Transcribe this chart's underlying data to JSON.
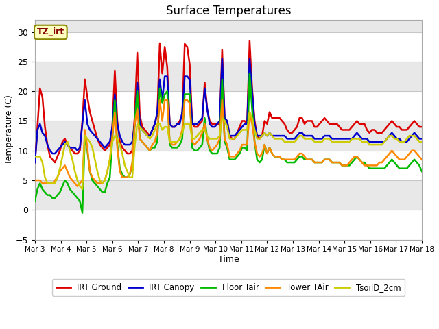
{
  "title": "Surface Temperatures",
  "xlabel": "Time",
  "ylabel": "Temperature (C)",
  "ylim": [
    -5,
    32
  ],
  "xlim": [
    0,
    15
  ],
  "annotation": "TZ_irt",
  "bg_color_light": "#e8e8e8",
  "bg_color_dark": "#d0d0d0",
  "grid_color": "#c8c8c8",
  "legend": [
    "IRT Ground",
    "IRT Canopy",
    "Floor Tair",
    "Tower TAir",
    "TsoilD_2cm"
  ],
  "colors": [
    "#dd0000",
    "#0000cc",
    "#00bb00",
    "#ff8800",
    "#cccc00"
  ],
  "xtick_labels": [
    "Mar 3",
    "Mar 4",
    "Mar 5",
    "Mar 6",
    "Mar 7",
    "Mar 8",
    "Mar 9",
    "Mar 10",
    "Mar 11",
    "Mar 12",
    "Mar 13",
    "Mar 14",
    "Mar 15",
    "Mar 16",
    "Mar 17",
    "Mar 18"
  ],
  "xtick_positions": [
    0,
    1,
    2,
    3,
    4,
    5,
    6,
    7,
    8,
    9,
    10,
    11,
    12,
    13,
    14,
    15
  ],
  "IRT_Ground": [
    8.0,
    14.0,
    20.5,
    19.0,
    14.0,
    11.0,
    9.0,
    8.5,
    8.0,
    9.0,
    10.0,
    11.5,
    12.0,
    11.0,
    10.5,
    10.0,
    9.5,
    9.5,
    10.0,
    15.0,
    22.0,
    19.0,
    16.5,
    15.0,
    13.5,
    12.0,
    11.0,
    10.5,
    10.0,
    10.5,
    11.0,
    14.0,
    23.5,
    15.0,
    11.5,
    10.5,
    10.0,
    9.5,
    9.5,
    10.0,
    16.0,
    26.5,
    16.0,
    14.0,
    13.5,
    13.0,
    12.5,
    13.5,
    14.5,
    16.0,
    28.0,
    23.0,
    27.5,
    24.0,
    14.5,
    14.0,
    14.0,
    14.5,
    15.0,
    16.0,
    28.0,
    27.5,
    24.5,
    14.5,
    14.0,
    14.0,
    14.5,
    15.0,
    21.5,
    17.0,
    15.0,
    14.5,
    14.5,
    14.5,
    14.5,
    27.0,
    15.5,
    15.0,
    12.5,
    12.0,
    12.0,
    13.0,
    14.0,
    15.0,
    15.0,
    14.5,
    28.5,
    20.5,
    15.0,
    12.5,
    12.0,
    12.5,
    15.0,
    14.5,
    16.5,
    15.5,
    15.5,
    15.5,
    15.5,
    15.0,
    14.5,
    13.5,
    13.0,
    13.0,
    13.5,
    14.0,
    15.5,
    15.5,
    14.5,
    15.0,
    15.0,
    15.0,
    14.0,
    14.0,
    14.5,
    15.0,
    15.5,
    15.0,
    14.5,
    14.5,
    14.5,
    14.5,
    14.0,
    13.5,
    13.5,
    13.5,
    13.5,
    14.0,
    14.5,
    15.0,
    14.5,
    14.5,
    14.5,
    13.5,
    13.0,
    13.5,
    13.5,
    13.0,
    13.0,
    13.0,
    13.5,
    14.0,
    14.5,
    15.0,
    14.5,
    14.0,
    14.0,
    13.5,
    13.5,
    13.5,
    14.0,
    14.5,
    15.0,
    14.5,
    14.0,
    14.0
  ],
  "IRT_Canopy": [
    8.0,
    13.5,
    14.5,
    13.0,
    12.5,
    11.0,
    10.0,
    9.5,
    9.5,
    10.0,
    10.5,
    11.0,
    11.5,
    11.0,
    10.5,
    10.5,
    10.5,
    10.0,
    10.5,
    14.5,
    18.5,
    14.5,
    13.5,
    13.0,
    12.5,
    12.0,
    11.5,
    11.0,
    10.5,
    11.0,
    11.5,
    14.0,
    19.5,
    14.5,
    12.5,
    11.5,
    11.0,
    11.0,
    11.0,
    11.5,
    14.5,
    21.5,
    14.5,
    13.5,
    13.0,
    12.5,
    12.5,
    13.5,
    14.5,
    16.5,
    22.0,
    18.5,
    22.5,
    22.5,
    14.5,
    14.0,
    14.0,
    14.5,
    14.5,
    16.5,
    22.5,
    22.5,
    22.0,
    14.5,
    14.5,
    14.5,
    15.0,
    15.5,
    20.5,
    17.0,
    14.5,
    14.0,
    14.0,
    14.5,
    15.0,
    25.5,
    15.5,
    15.0,
    12.5,
    12.5,
    12.5,
    13.0,
    13.5,
    14.0,
    14.5,
    14.5,
    25.5,
    20.0,
    14.5,
    12.5,
    12.5,
    12.5,
    13.0,
    12.5,
    13.0,
    12.5,
    12.5,
    12.5,
    12.5,
    12.5,
    12.5,
    12.0,
    12.0,
    12.0,
    12.0,
    12.5,
    13.0,
    13.0,
    12.5,
    12.5,
    12.5,
    12.5,
    12.0,
    12.0,
    12.0,
    12.0,
    12.5,
    12.5,
    12.5,
    12.0,
    12.0,
    12.0,
    12.0,
    12.0,
    12.0,
    12.0,
    12.0,
    12.0,
    12.5,
    13.0,
    12.5,
    12.0,
    12.0,
    12.0,
    11.5,
    11.5,
    11.5,
    11.5,
    11.5,
    11.5,
    11.5,
    12.0,
    12.5,
    13.0,
    12.5,
    12.0,
    12.0,
    11.5,
    11.5,
    11.5,
    12.0,
    12.5,
    13.0,
    12.5,
    12.0,
    12.0
  ],
  "Floor_Tair": [
    1.5,
    3.5,
    4.5,
    3.5,
    3.0,
    2.5,
    2.5,
    2.0,
    2.0,
    2.5,
    3.0,
    4.0,
    5.0,
    4.5,
    3.5,
    3.0,
    2.5,
    2.0,
    1.5,
    -0.5,
    12.5,
    10.0,
    6.5,
    5.0,
    4.5,
    4.0,
    3.5,
    3.0,
    3.0,
    4.5,
    5.5,
    12.0,
    18.5,
    11.0,
    7.0,
    6.0,
    5.5,
    5.5,
    6.0,
    7.5,
    15.0,
    20.0,
    12.0,
    11.5,
    11.0,
    10.5,
    10.0,
    10.5,
    10.5,
    11.5,
    20.5,
    18.0,
    19.5,
    20.0,
    11.0,
    10.5,
    10.5,
    10.5,
    11.0,
    12.0,
    19.5,
    19.5,
    19.5,
    10.5,
    10.0,
    10.0,
    10.5,
    11.0,
    15.5,
    12.0,
    10.0,
    9.5,
    9.5,
    9.5,
    10.5,
    22.0,
    11.5,
    10.5,
    8.5,
    8.5,
    8.5,
    9.0,
    9.5,
    10.5,
    10.5,
    10.0,
    23.0,
    17.0,
    11.5,
    8.5,
    8.0,
    8.5,
    11.0,
    9.5,
    10.5,
    9.5,
    9.0,
    9.0,
    9.0,
    8.5,
    8.5,
    8.0,
    8.0,
    8.0,
    8.0,
    8.5,
    9.0,
    9.0,
    8.5,
    8.5,
    8.5,
    8.5,
    8.0,
    8.0,
    8.0,
    8.0,
    8.5,
    8.5,
    8.5,
    8.0,
    8.0,
    8.0,
    8.0,
    7.5,
    7.5,
    7.5,
    7.5,
    8.0,
    8.5,
    9.0,
    8.5,
    8.0,
    8.0,
    7.5,
    7.0,
    7.0,
    7.0,
    7.0,
    7.0,
    7.0,
    7.0,
    7.5,
    8.0,
    8.5,
    8.0,
    7.5,
    7.0,
    7.0,
    7.0,
    7.0,
    7.5,
    8.0,
    8.5,
    8.0,
    7.5,
    6.5
  ],
  "Tower_TAir": [
    5.0,
    5.0,
    5.0,
    4.5,
    4.5,
    4.5,
    4.5,
    4.5,
    5.0,
    5.5,
    6.5,
    7.0,
    7.5,
    6.5,
    5.5,
    5.0,
    4.5,
    4.0,
    4.5,
    5.0,
    13.5,
    10.5,
    6.5,
    5.5,
    5.0,
    4.5,
    4.5,
    4.5,
    5.0,
    6.5,
    8.5,
    12.5,
    16.5,
    10.5,
    6.5,
    5.5,
    5.5,
    5.5,
    6.0,
    8.0,
    14.5,
    17.0,
    12.0,
    11.5,
    11.0,
    10.5,
    10.0,
    11.0,
    11.5,
    13.0,
    18.5,
    15.0,
    18.5,
    18.5,
    11.5,
    11.0,
    11.0,
    11.5,
    12.0,
    13.5,
    18.5,
    18.5,
    18.0,
    11.5,
    11.0,
    11.5,
    12.0,
    13.0,
    14.5,
    12.0,
    10.5,
    10.0,
    10.5,
    11.0,
    12.0,
    18.5,
    12.0,
    11.0,
    9.0,
    9.0,
    9.0,
    9.5,
    10.0,
    11.0,
    11.0,
    11.0,
    16.5,
    14.5,
    11.5,
    9.5,
    9.0,
    9.5,
    11.0,
    9.5,
    10.5,
    9.5,
    9.0,
    9.0,
    9.0,
    8.5,
    8.5,
    8.5,
    8.5,
    8.5,
    8.5,
    9.0,
    9.5,
    9.5,
    9.0,
    8.5,
    8.5,
    8.5,
    8.0,
    8.0,
    8.0,
    8.0,
    8.5,
    8.5,
    8.5,
    8.0,
    8.0,
    8.0,
    8.0,
    7.5,
    7.5,
    7.5,
    8.0,
    8.5,
    9.0,
    9.0,
    8.5,
    8.0,
    7.5,
    7.5,
    7.5,
    7.5,
    7.5,
    7.5,
    8.0,
    8.0,
    8.5,
    9.0,
    9.5,
    10.0,
    9.5,
    9.0,
    8.5,
    8.5,
    8.5,
    9.0,
    9.5,
    10.0,
    10.0,
    9.5,
    9.0,
    8.5
  ],
  "TsoilD_2cm": [
    9.0,
    9.0,
    9.0,
    8.0,
    5.5,
    4.5,
    4.5,
    4.5,
    4.5,
    5.5,
    7.0,
    9.0,
    11.0,
    11.5,
    10.0,
    8.5,
    6.5,
    5.0,
    4.0,
    3.5,
    12.5,
    12.0,
    11.5,
    10.5,
    8.5,
    6.5,
    5.0,
    4.5,
    5.0,
    6.5,
    8.5,
    11.5,
    12.5,
    12.0,
    11.0,
    9.5,
    7.5,
    6.5,
    5.5,
    5.5,
    11.0,
    14.5,
    14.0,
    13.5,
    13.0,
    12.5,
    12.0,
    12.5,
    13.5,
    14.5,
    14.5,
    13.5,
    14.0,
    14.0,
    11.5,
    11.5,
    11.5,
    11.5,
    12.0,
    13.0,
    14.5,
    14.5,
    14.5,
    12.0,
    12.0,
    12.5,
    13.0,
    13.5,
    13.5,
    12.5,
    12.0,
    12.0,
    12.0,
    12.0,
    12.5,
    15.5,
    15.0,
    14.0,
    12.0,
    12.0,
    12.0,
    12.5,
    13.0,
    13.5,
    13.5,
    13.5,
    16.5,
    15.5,
    13.5,
    12.0,
    12.0,
    12.5,
    13.0,
    12.5,
    13.0,
    12.5,
    12.0,
    12.0,
    12.0,
    12.0,
    11.5,
    11.5,
    11.5,
    11.5,
    11.5,
    12.0,
    12.5,
    12.5,
    12.0,
    12.0,
    12.0,
    12.0,
    11.5,
    11.5,
    11.5,
    11.5,
    12.0,
    12.0,
    12.0,
    11.5,
    11.5,
    11.5,
    11.5,
    11.5,
    11.5,
    11.5,
    11.5,
    12.0,
    12.0,
    12.0,
    12.0,
    11.5,
    11.5,
    11.5,
    11.0,
    11.0,
    11.0,
    11.0,
    11.0,
    11.0,
    11.5,
    12.0,
    12.5,
    12.5,
    12.0,
    12.0,
    11.5,
    11.5,
    11.5,
    12.0,
    12.5,
    12.5,
    12.5,
    12.0,
    11.5,
    11.5
  ]
}
